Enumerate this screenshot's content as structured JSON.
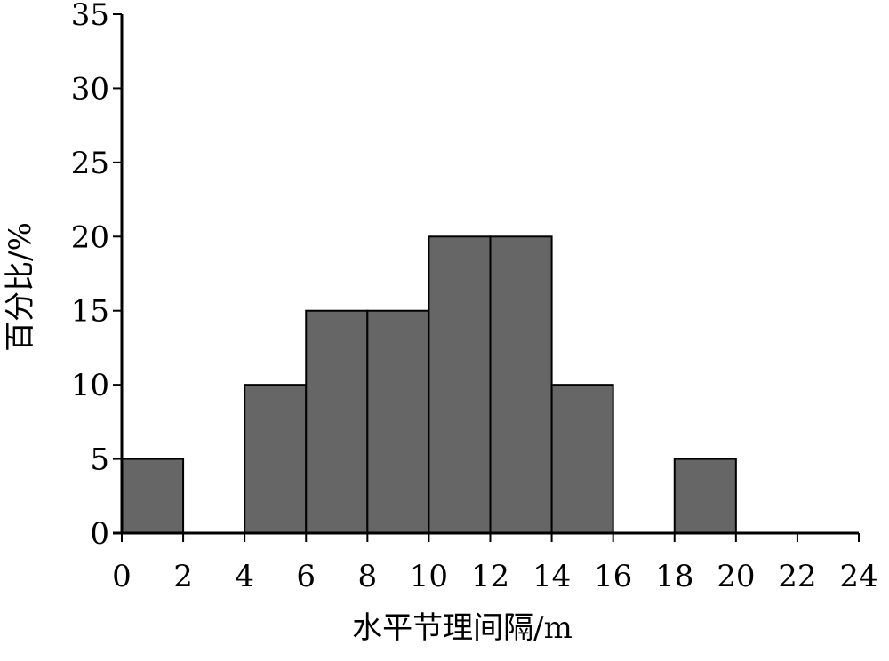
{
  "chart_data": {
    "type": "bar",
    "bins": [
      {
        "range": [
          0,
          2
        ],
        "value": 5
      },
      {
        "range": [
          2,
          4
        ],
        "value": 0
      },
      {
        "range": [
          4,
          6
        ],
        "value": 10
      },
      {
        "range": [
          6,
          8
        ],
        "value": 15
      },
      {
        "range": [
          8,
          10
        ],
        "value": 15
      },
      {
        "range": [
          10,
          12
        ],
        "value": 20
      },
      {
        "range": [
          12,
          14
        ],
        "value": 20
      },
      {
        "range": [
          14,
          16
        ],
        "value": 10
      },
      {
        "range": [
          16,
          18
        ],
        "value": 0
      },
      {
        "range": [
          18,
          20
        ],
        "value": 5
      },
      {
        "range": [
          20,
          22
        ],
        "value": 0
      },
      {
        "range": [
          22,
          24
        ],
        "value": 0
      }
    ],
    "xlabel": "水平节理间隔/m",
    "ylabel": "百分比/%",
    "xlim": [
      0,
      24
    ],
    "ylim": [
      0,
      35
    ],
    "xticks": [
      "0",
      "2",
      "4",
      "6",
      "8",
      "10",
      "12",
      "14",
      "16",
      "18",
      "20",
      "22",
      "24"
    ],
    "yticks": [
      "0",
      "5",
      "10",
      "15",
      "20",
      "25",
      "30",
      "35"
    ],
    "grid": false,
    "legend": "none",
    "colors": {
      "bar_fill": "#666666",
      "bar_stroke": "#000000",
      "axis": "#000000"
    }
  }
}
